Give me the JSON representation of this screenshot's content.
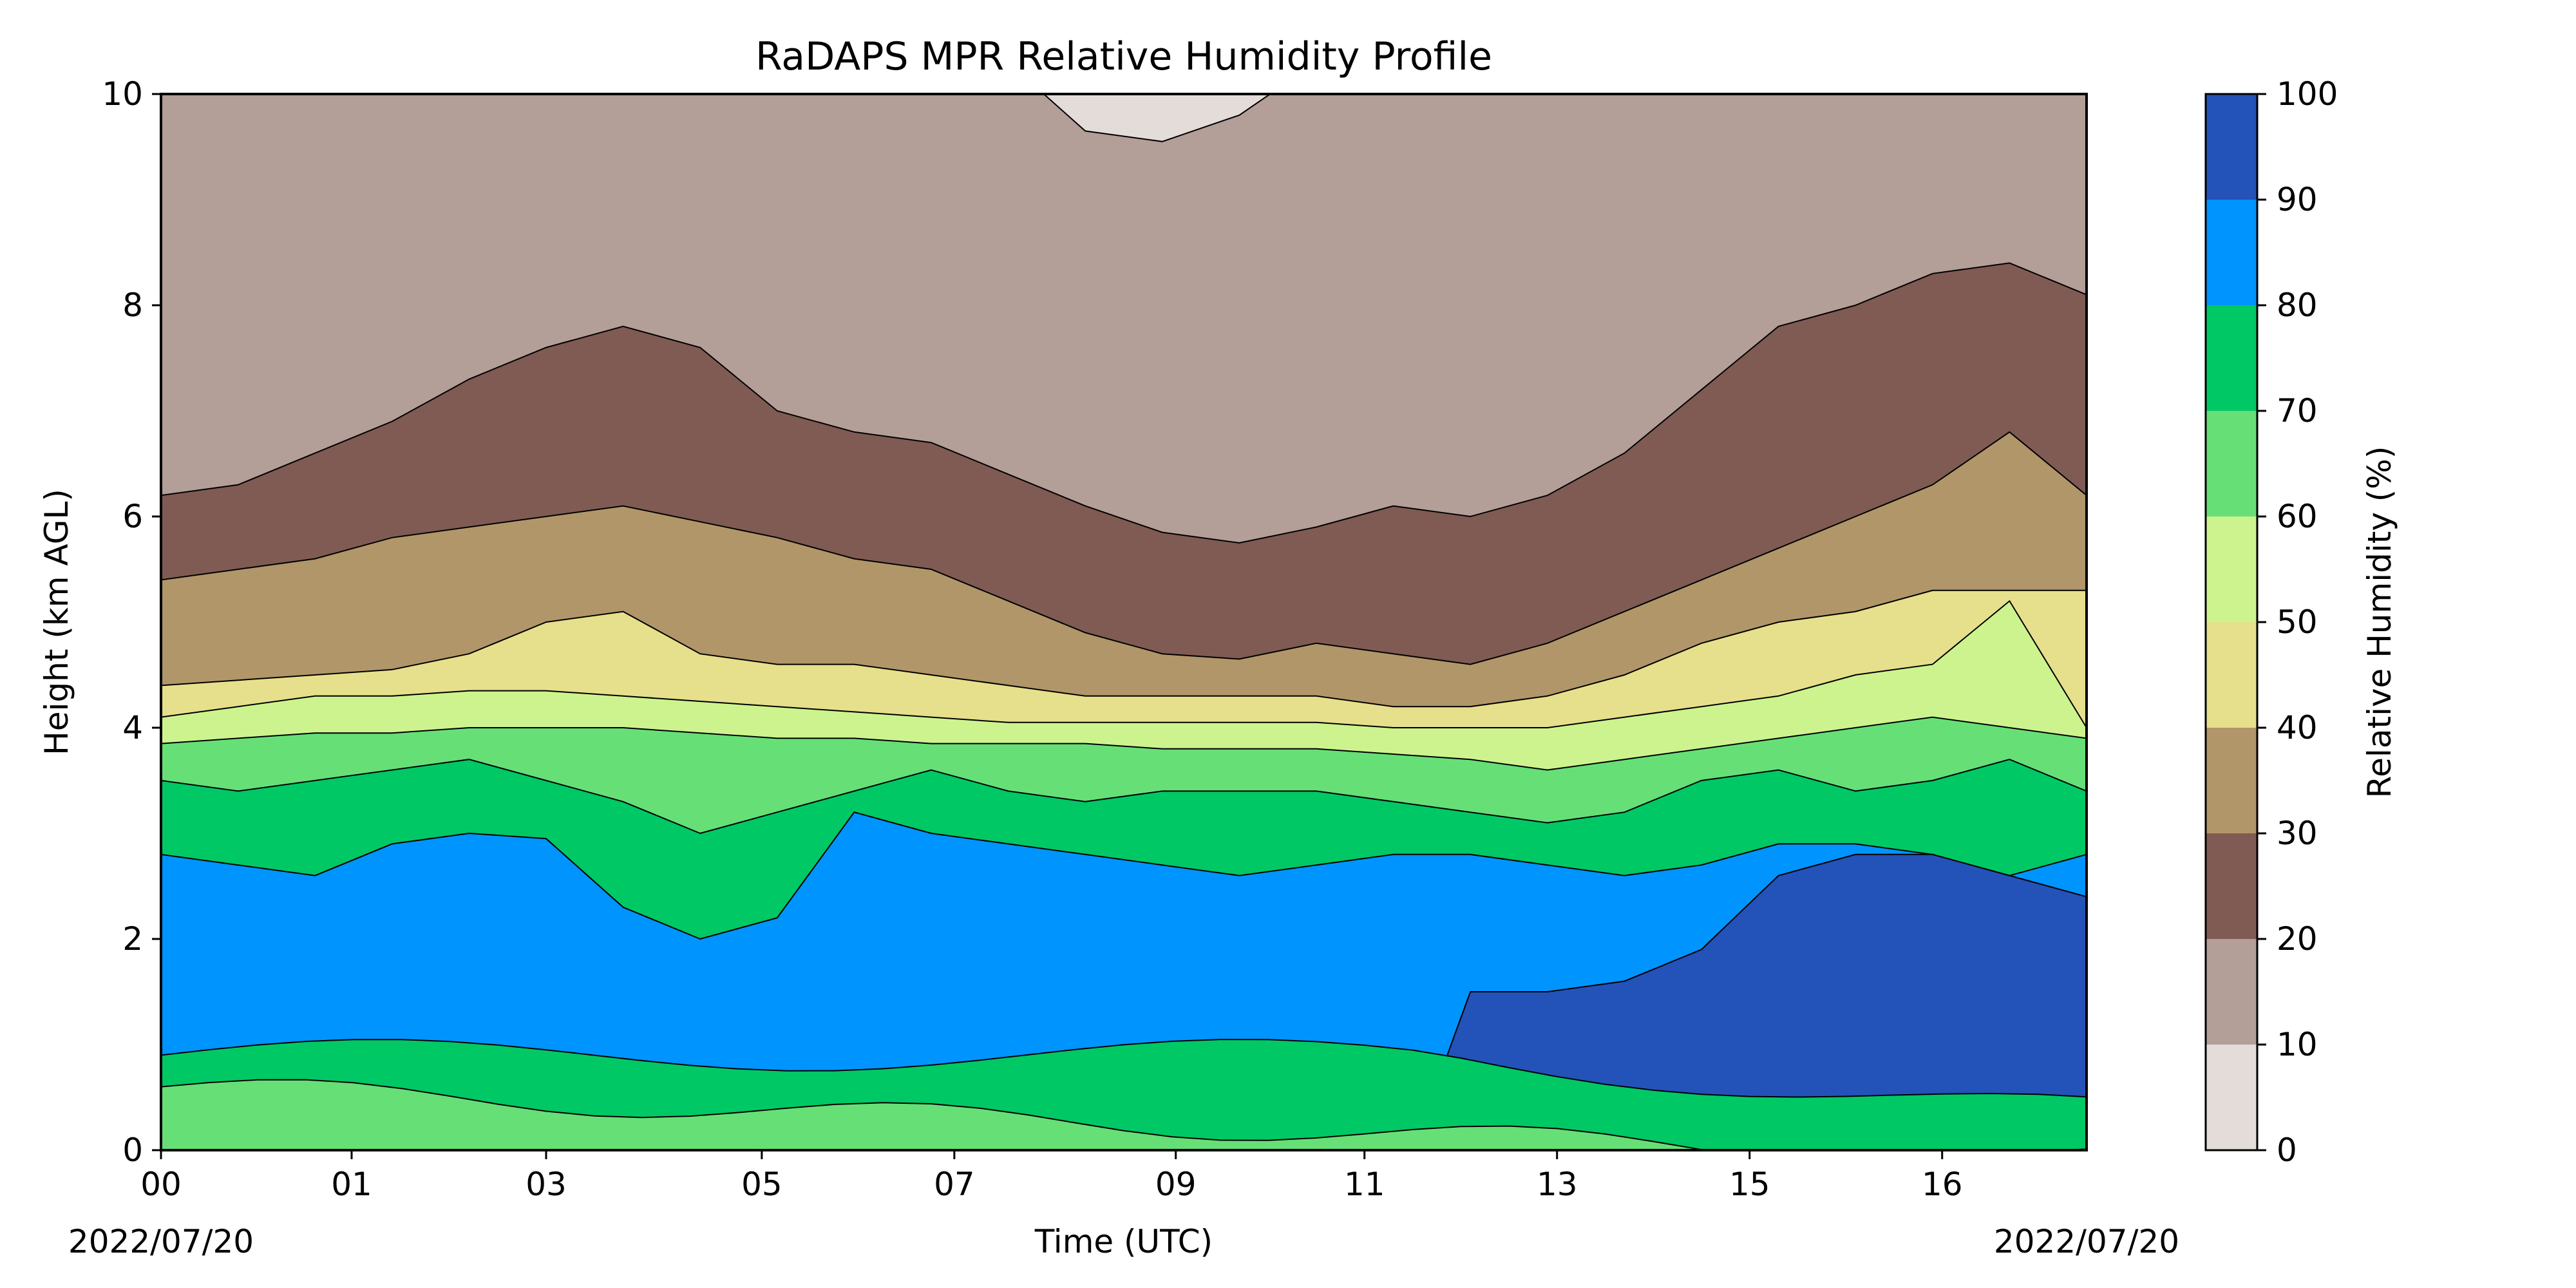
{
  "chart_data": {
    "type": "heatmap",
    "title": "RaDAPS MPR Relative Humidity Profile",
    "xlabel": "Time (UTC)",
    "ylabel": "Height (km AGL)",
    "x_start_label": "2022/07/20",
    "x_end_label": "2022/07/20",
    "x_ticks": [
      "00",
      "01",
      "03",
      "05",
      "07",
      "09",
      "11",
      "13",
      "15",
      "16"
    ],
    "x_tick_fractions": [
      0.0,
      0.099,
      0.2,
      0.312,
      0.412,
      0.527,
      0.625,
      0.725,
      0.825,
      0.925
    ],
    "ylim": [
      0,
      10
    ],
    "y_ticks": [
      0,
      2,
      4,
      6,
      8,
      10
    ],
    "colorbar": {
      "label": "Relative Humidity (%)",
      "levels": [
        0,
        10,
        20,
        30,
        40,
        50,
        60,
        70,
        80,
        90,
        100
      ],
      "colors": [
        "#e3dcd9",
        "#b39e98",
        "#7f5b53",
        "#b09669",
        "#e6df8c",
        "#cdf38f",
        "#66df77",
        "#00c865",
        "#0094ff",
        "#2352b9"
      ]
    },
    "contour_profiles": {
      "x": [
        0,
        0.04,
        0.08,
        0.12,
        0.16,
        0.2,
        0.24,
        0.28,
        0.32,
        0.36,
        0.4,
        0.44,
        0.48,
        0.52,
        0.56,
        0.6,
        0.64,
        0.68,
        0.72,
        0.76,
        0.8,
        0.84,
        0.88,
        0.92,
        0.96,
        1.0
      ],
      "levels": [
        {
          "rh": 10,
          "height_km": [
            10.3,
            10.3,
            10.3,
            10.3,
            10.3,
            10.3,
            10.3,
            10.3,
            10.3,
            10.3,
            10.3,
            10.3,
            9.65,
            9.55,
            9.8,
            10.3,
            10.3,
            10.3,
            10.3,
            10.3,
            10.3,
            10.3,
            10.3,
            10.3,
            10.3,
            10.3
          ]
        },
        {
          "rh": 20,
          "height_km": [
            6.2,
            6.3,
            6.6,
            6.9,
            7.3,
            7.6,
            7.8,
            7.6,
            7.0,
            6.8,
            6.7,
            6.4,
            6.1,
            5.85,
            5.75,
            5.9,
            6.1,
            6.0,
            6.2,
            6.6,
            7.2,
            7.8,
            8.0,
            8.3,
            8.4,
            8.1
          ]
        },
        {
          "rh": 30,
          "height_km": [
            5.4,
            5.5,
            5.6,
            5.8,
            5.9,
            6.0,
            6.1,
            5.95,
            5.8,
            5.6,
            5.5,
            5.2,
            4.9,
            4.7,
            4.65,
            4.8,
            4.7,
            4.6,
            4.8,
            5.1,
            5.4,
            5.7,
            6.0,
            6.3,
            6.8,
            6.2
          ]
        },
        {
          "rh": 40,
          "height_km": [
            4.4,
            4.45,
            4.5,
            4.55,
            4.7,
            5.0,
            5.1,
            4.7,
            4.6,
            4.6,
            4.5,
            4.4,
            4.3,
            4.3,
            4.3,
            4.3,
            4.2,
            4.2,
            4.3,
            4.5,
            4.8,
            5.0,
            5.1,
            5.3,
            5.3,
            5.3
          ]
        },
        {
          "rh": 50,
          "height_km": [
            4.1,
            4.2,
            4.3,
            4.3,
            4.35,
            4.35,
            4.3,
            4.25,
            4.2,
            4.15,
            4.1,
            4.05,
            4.05,
            4.05,
            4.05,
            4.05,
            4.0,
            4.0,
            4.0,
            4.1,
            4.2,
            4.3,
            4.5,
            4.6,
            5.2,
            4.0
          ]
        },
        {
          "rh": 60,
          "height_km": [
            3.85,
            3.9,
            3.95,
            3.95,
            4.0,
            4.0,
            4.0,
            3.95,
            3.9,
            3.9,
            3.85,
            3.85,
            3.85,
            3.8,
            3.8,
            3.8,
            3.75,
            3.7,
            3.6,
            3.7,
            3.8,
            3.9,
            4.0,
            4.1,
            4.0,
            3.9
          ]
        },
        {
          "rh": 70,
          "height_km": [
            3.5,
            3.4,
            3.5,
            3.6,
            3.7,
            3.5,
            3.3,
            3.0,
            3.2,
            3.4,
            3.6,
            3.4,
            3.3,
            3.4,
            3.4,
            3.4,
            3.3,
            3.2,
            3.1,
            3.2,
            3.5,
            3.6,
            3.4,
            3.5,
            3.7,
            3.4
          ]
        },
        {
          "rh": 80,
          "height_km": [
            2.8,
            2.7,
            2.6,
            2.9,
            3.0,
            2.95,
            2.3,
            2.0,
            2.2,
            3.2,
            3.0,
            2.9,
            2.8,
            2.7,
            2.6,
            2.7,
            2.8,
            2.8,
            2.7,
            2.6,
            2.7,
            2.9,
            2.9,
            2.8,
            2.6,
            2.8
          ]
        },
        {
          "rh": 90,
          "height_km": [
            -0.5,
            -0.5,
            -0.5,
            -0.5,
            -0.5,
            -0.5,
            -0.5,
            -0.5,
            -0.5,
            -0.5,
            -0.5,
            -0.5,
            -0.5,
            -0.5,
            -0.5,
            -0.5,
            -0.5,
            1.5,
            1.5,
            1.6,
            1.9,
            2.6,
            2.8,
            2.8,
            2.6,
            2.4
          ]
        }
      ]
    },
    "low_level_features": {
      "green_band_top_km": 0.9,
      "light_green_bottom_band_top_km": 0.6,
      "dark_blue_lower_bound_km": 1.0,
      "dark_blue_start_fraction": 0.66
    }
  }
}
